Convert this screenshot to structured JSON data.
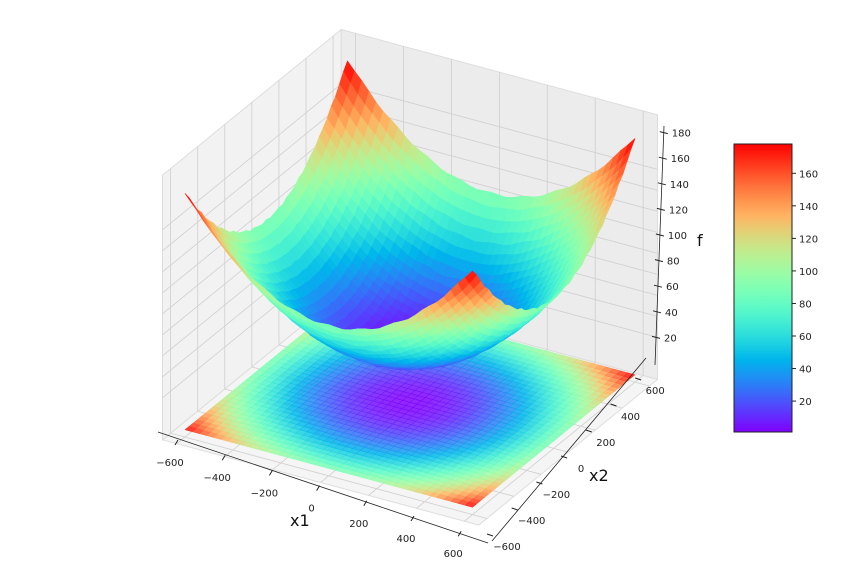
{
  "chart_data": {
    "type": "surface",
    "colormap": "rainbow",
    "xlabel": "x1",
    "ylabel": "x2",
    "zlabel": "f",
    "xlim": [
      -600,
      600
    ],
    "ylim": [
      -600,
      600
    ],
    "zlim": [
      0,
      180
    ],
    "xticks": [
      "−600",
      "−400",
      "−200",
      "0",
      "200",
      "400",
      "600"
    ],
    "yticks": [
      "−600",
      "−400",
      "−200",
      "0",
      "200",
      "400",
      "600"
    ],
    "zticks": [
      "20",
      "40",
      "60",
      "80",
      "100",
      "120",
      "140",
      "160",
      "180"
    ],
    "floor_contour": true,
    "grid": true,
    "colorbar": {
      "range": [
        1,
        178
      ],
      "ticks": [
        "20",
        "40",
        "60",
        "80",
        "100",
        "120",
        "140",
        "160"
      ]
    }
  }
}
